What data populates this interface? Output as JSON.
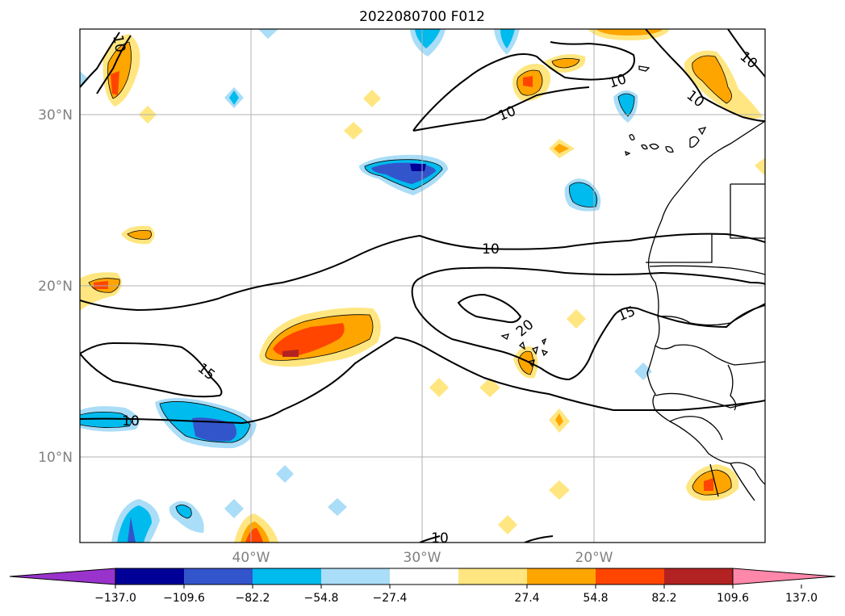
{
  "title": "2022080700 F012",
  "lat_labels": [
    "30°N",
    "20°N",
    "10°N"
  ],
  "lon_labels": [
    "40°W",
    "30°W",
    "20°W"
  ],
  "colorbar": {
    "colors": [
      "#9933cc",
      "#000099",
      "#3355cc",
      "#00bbee",
      "#aaddf7",
      "#ffffff",
      "#ffe680",
      "#ffa500",
      "#ff4500",
      "#b22222",
      "#ff88aa"
    ],
    "tick_labels": [
      "−137.0",
      "−109.6",
      "−82.2",
      "−54.8",
      "−27.4",
      "27.4",
      "54.8",
      "82.2",
      "109.6",
      "137.0"
    ]
  },
  "contour_labels": [
    "10",
    "10",
    "10",
    "10",
    "10",
    "20",
    "15",
    "15",
    "10",
    "10",
    "10"
  ]
}
